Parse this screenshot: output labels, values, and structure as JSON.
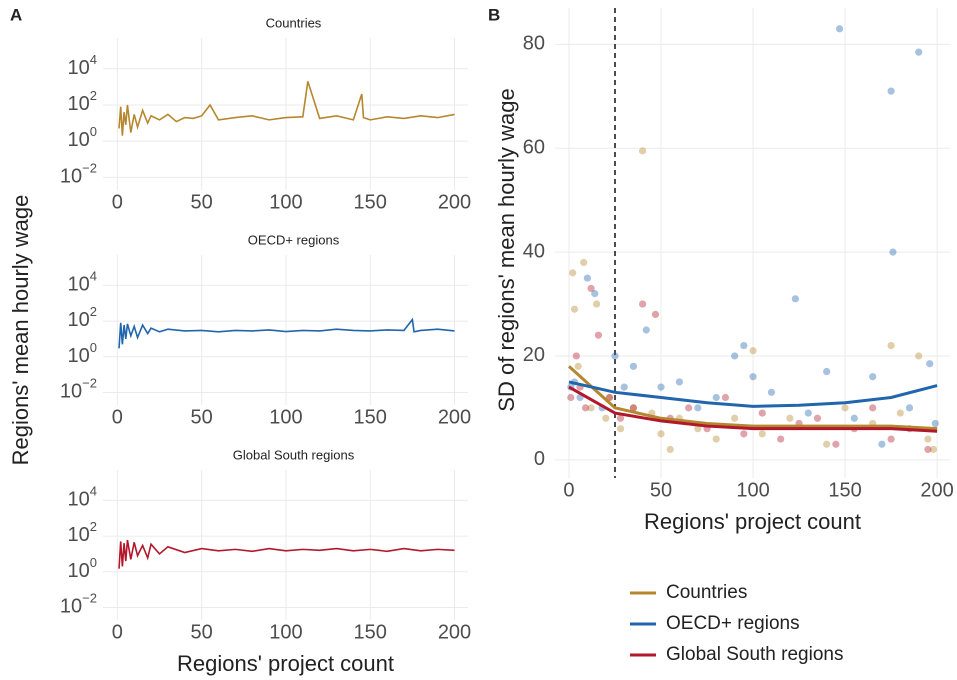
{
  "chart_data": [
    {
      "type": "line",
      "panel": "A",
      "title": "Countries",
      "y_label": "Regions' mean hourly wage",
      "log_scale": true,
      "grid": true,
      "color": "#b5872f",
      "x": [
        1,
        2,
        3,
        4,
        5,
        6,
        8,
        10,
        12,
        15,
        18,
        20,
        25,
        30,
        35,
        40,
        45,
        50,
        55,
        60,
        70,
        80,
        90,
        100,
        110,
        113,
        120,
        130,
        140,
        145,
        146,
        150,
        160,
        170,
        180,
        190,
        200
      ],
      "values": [
        5,
        80,
        2,
        40,
        8,
        100,
        3,
        30,
        6,
        50,
        10,
        25,
        15,
        30,
        12,
        20,
        18,
        25,
        100,
        15,
        20,
        25,
        15,
        20,
        22,
        2000,
        18,
        25,
        15,
        400,
        20,
        15,
        22,
        18,
        25,
        20,
        30
      ],
      "xlim": [
        -8.5,
        208
      ],
      "xticks": [
        0,
        50,
        100,
        150,
        200
      ],
      "ylim": [
        0.002,
        500000
      ],
      "yticks": [
        {
          "value": 0.01,
          "label": "10",
          "exponent": "−2"
        },
        {
          "value": 1,
          "label": "10",
          "exponent": "0"
        },
        {
          "value": 100,
          "label": "10",
          "exponent": "2"
        },
        {
          "value": 10000,
          "label": "10",
          "exponent": "4"
        }
      ]
    },
    {
      "type": "line",
      "title": "OECD+ regions",
      "log_scale": true,
      "grid": true,
      "color": "#2166ac",
      "x": [
        1,
        2,
        3,
        4,
        5,
        6,
        8,
        10,
        12,
        15,
        18,
        20,
        25,
        30,
        40,
        50,
        60,
        70,
        80,
        90,
        100,
        110,
        120,
        130,
        140,
        150,
        160,
        170,
        175,
        176,
        180,
        190,
        200
      ],
      "values": [
        3,
        80,
        5,
        60,
        10,
        70,
        15,
        50,
        12,
        60,
        20,
        40,
        25,
        35,
        28,
        30,
        25,
        30,
        28,
        32,
        26,
        30,
        28,
        35,
        30,
        28,
        32,
        30,
        120,
        25,
        30,
        35,
        28
      ],
      "xlim": [
        -8.5,
        208
      ],
      "xticks": [
        0,
        50,
        100,
        150,
        200
      ],
      "ylim": [
        0.002,
        500000
      ],
      "yticks": [
        {
          "value": 0.01,
          "label": "10",
          "exponent": "−2"
        },
        {
          "value": 1,
          "label": "10",
          "exponent": "0"
        },
        {
          "value": 100,
          "label": "10",
          "exponent": "2"
        },
        {
          "value": 10000,
          "label": "10",
          "exponent": "4"
        }
      ]
    },
    {
      "type": "line",
      "title": "Global South regions",
      "x_label": "Regions' project count",
      "log_scale": true,
      "grid": true,
      "color": "#b2182b",
      "x": [
        1,
        2,
        3,
        4,
        5,
        6,
        8,
        10,
        12,
        15,
        18,
        20,
        25,
        30,
        40,
        50,
        60,
        70,
        80,
        90,
        100,
        110,
        120,
        130,
        140,
        150,
        160,
        170,
        180,
        190,
        200
      ],
      "values": [
        1.5,
        50,
        2,
        40,
        4,
        60,
        5,
        45,
        8,
        30,
        6,
        35,
        10,
        25,
        12,
        20,
        15,
        18,
        14,
        20,
        15,
        18,
        16,
        20,
        15,
        18,
        14,
        20,
        15,
        18,
        16
      ],
      "xlim": [
        -8.5,
        208
      ],
      "xticks": [
        0,
        50,
        100,
        150,
        200
      ],
      "ylim": [
        0.002,
        500000
      ],
      "yticks": [
        {
          "value": 0.01,
          "label": "10",
          "exponent": "−2"
        },
        {
          "value": 1,
          "label": "10",
          "exponent": "0"
        },
        {
          "value": 100,
          "label": "10",
          "exponent": "2"
        },
        {
          "value": 10000,
          "label": "10",
          "exponent": "4"
        }
      ]
    },
    {
      "type": "scatter",
      "panel": "B",
      "y_label": "SD of regions' mean hourly wage",
      "x_label": "Regions' project count",
      "grid": true,
      "legend": "bottom",
      "vline": 25,
      "xlim": [
        -7.6,
        207
      ],
      "xticks": [
        0,
        50,
        100,
        150,
        200
      ],
      "ylim": [
        -3.5,
        87
      ],
      "yticks": [
        0,
        20,
        40,
        60,
        80
      ],
      "series": [
        {
          "name": "Countries",
          "color": "#b5872f",
          "x": [
            2,
            3,
            5,
            8,
            12,
            15,
            20,
            22,
            28,
            35,
            40,
            45,
            50,
            55,
            60,
            70,
            80,
            90,
            100,
            105,
            120,
            140,
            150,
            165,
            175,
            180,
            190,
            195,
            198
          ],
          "values": [
            36,
            29,
            18,
            38,
            10,
            30,
            8,
            12,
            6,
            10,
            59.5,
            9,
            5,
            2,
            8,
            6,
            4,
            8,
            21,
            5,
            8,
            3,
            10,
            7,
            22,
            9,
            20,
            4,
            2
          ],
          "trend": {
            "x": [
              0,
              25,
              50,
              75,
              100,
              125,
              150,
              175,
              200
            ],
            "values": [
              18,
              10,
              8,
              7,
              6.5,
              6.5,
              6.5,
              6.5,
              6
            ]
          }
        },
        {
          "name": "OECD+ regions",
          "color": "#2166ac",
          "x": [
            1,
            3,
            6,
            10,
            14,
            18,
            25,
            30,
            35,
            42,
            50,
            60,
            70,
            80,
            90,
            95,
            100,
            110,
            123,
            130,
            140,
            147,
            155,
            165,
            170,
            175,
            176,
            185,
            190,
            196,
            199
          ],
          "values": [
            14,
            15,
            12,
            35,
            32,
            10,
            20,
            14,
            18,
            25,
            14,
            15,
            10,
            12,
            20,
            22,
            16,
            13,
            31,
            9,
            17,
            83,
            8,
            16,
            3,
            71,
            40,
            10,
            78.5,
            18.5,
            7
          ],
          "trend": {
            "x": [
              0,
              25,
              50,
              75,
              100,
              125,
              150,
              175,
              200
            ],
            "values": [
              15,
              13,
              12,
              11,
              10.3,
              10.5,
              11,
              12,
              14.3
            ]
          }
        },
        {
          "name": "Global South regions",
          "color": "#b2182b",
          "x": [
            1,
            4,
            6,
            9,
            12,
            16,
            22,
            28,
            35,
            40,
            47,
            55,
            65,
            75,
            85,
            95,
            105,
            115,
            125,
            135,
            145,
            155,
            165,
            175,
            185,
            195
          ],
          "values": [
            12,
            20,
            14,
            10,
            33,
            24,
            12,
            8,
            10,
            30,
            28,
            8,
            10,
            6,
            12,
            5,
            9,
            4,
            7,
            8,
            3,
            6,
            10,
            4,
            6,
            2
          ],
          "trend": {
            "x": [
              0,
              25,
              50,
              75,
              100,
              125,
              150,
              175,
              200
            ],
            "values": [
              14,
              9,
              7.5,
              6.5,
              6,
              6,
              6,
              6,
              5.5
            ]
          }
        }
      ]
    }
  ]
}
